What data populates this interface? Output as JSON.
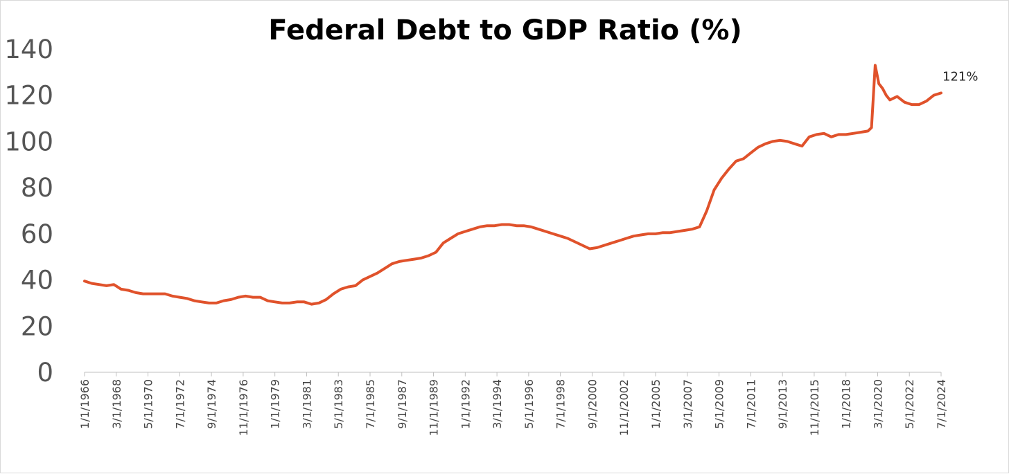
{
  "chart_data": {
    "type": "line",
    "title": "Federal Debt to GDP Ratio (%)",
    "xlabel": "",
    "ylabel": "",
    "ylim": [
      0,
      140
    ],
    "yticks": [
      0,
      20,
      40,
      60,
      80,
      100,
      120,
      140
    ],
    "xlim": [
      "1/1/1966",
      "7/1/2024"
    ],
    "x_tick_labels": [
      "1/1/1966",
      "3/1/1968",
      "5/1/1970",
      "7/1/1972",
      "9/1/1974",
      "11/1/1976",
      "1/1/1979",
      "3/1/1981",
      "5/1/1983",
      "7/1/1985",
      "9/1/1987",
      "11/1/1989",
      "1/1/1992",
      "3/1/1994",
      "5/1/1996",
      "7/1/1998",
      "9/1/2000",
      "11/1/2002",
      "1/1/2005",
      "3/1/2007",
      "5/1/2009",
      "7/1/2011",
      "9/1/2013",
      "11/1/2015",
      "1/1/2018",
      "3/1/2020",
      "5/1/2022",
      "7/1/2024"
    ],
    "grid": false,
    "legend": "none",
    "line_color": "#e0522b",
    "end_annotation": "121%",
    "series": [
      {
        "x": [
          "1966-01",
          "1966-07",
          "1967-01",
          "1967-07",
          "1968-01",
          "1968-07",
          "1969-01",
          "1969-07",
          "1970-01",
          "1970-07",
          "1971-01",
          "1971-07",
          "1972-01",
          "1972-07",
          "1973-01",
          "1973-07",
          "1974-01",
          "1974-07",
          "1975-01",
          "1975-07",
          "1976-01",
          "1976-07",
          "1977-01",
          "1977-07",
          "1978-01",
          "1978-07",
          "1979-01",
          "1979-07",
          "1980-01",
          "1980-07",
          "1981-01",
          "1981-07",
          "1982-01",
          "1982-07",
          "1983-01",
          "1983-07",
          "1984-01",
          "1984-07",
          "1985-01",
          "1985-07",
          "1986-01",
          "1986-07",
          "1987-01",
          "1987-07",
          "1988-01",
          "1988-07",
          "1989-01",
          "1989-07",
          "1990-01",
          "1990-07",
          "1991-01",
          "1991-07",
          "1992-01",
          "1992-07",
          "1993-01",
          "1993-07",
          "1994-01",
          "1994-07",
          "1995-01",
          "1995-07",
          "1996-01",
          "1996-07",
          "1997-01",
          "1997-07",
          "1998-01",
          "1998-07",
          "1999-01",
          "1999-07",
          "2000-01",
          "2000-07",
          "2001-01",
          "2001-07",
          "2002-01",
          "2002-07",
          "2003-01",
          "2003-07",
          "2004-01",
          "2004-07",
          "2005-01",
          "2005-07",
          "2006-01",
          "2006-07",
          "2007-01",
          "2007-07",
          "2008-01",
          "2008-07",
          "2009-01",
          "2009-07",
          "2010-01",
          "2010-07",
          "2011-01",
          "2011-07",
          "2012-01",
          "2012-07",
          "2013-01",
          "2013-07",
          "2014-01",
          "2014-07",
          "2015-01",
          "2015-07",
          "2016-01",
          "2016-07",
          "2017-01",
          "2017-07",
          "2018-01",
          "2018-07",
          "2019-01",
          "2019-07",
          "2019-10",
          "2020-01",
          "2020-04",
          "2020-07",
          "2020-10",
          "2021-01",
          "2021-07",
          "2022-01",
          "2022-07",
          "2023-01",
          "2023-07",
          "2024-01",
          "2024-07"
        ],
        "y": [
          39.5,
          38.5,
          38,
          37.5,
          38,
          36,
          35.5,
          34.5,
          34,
          34,
          34,
          34,
          33,
          32.5,
          32,
          31,
          30.5,
          30,
          30,
          31,
          31.5,
          32.5,
          33,
          32.5,
          32.5,
          31,
          30.5,
          30,
          30,
          30.5,
          30.5,
          29.5,
          30,
          31.5,
          34,
          36,
          37,
          37.5,
          40,
          41.5,
          43,
          45,
          47,
          48,
          48.5,
          49,
          49.5,
          50.5,
          52,
          56,
          58,
          60,
          61,
          62,
          63,
          63.5,
          63.5,
          64,
          64,
          63.5,
          63.5,
          63,
          62,
          61,
          60,
          59,
          58,
          56.5,
          55,
          53.5,
          54,
          55,
          56,
          57,
          58,
          59,
          59.5,
          60,
          60,
          60.5,
          60.5,
          61,
          61.5,
          62,
          63,
          70,
          79,
          84,
          88,
          91.5,
          92.5,
          95,
          97.5,
          99,
          100,
          100.5,
          100,
          99,
          98,
          102,
          103,
          103.5,
          102,
          103,
          103,
          103.5,
          104,
          104.5,
          106,
          133,
          125,
          123,
          120,
          118,
          119.5,
          117,
          116,
          116,
          117.5,
          120,
          121
        ]
      }
    ]
  }
}
